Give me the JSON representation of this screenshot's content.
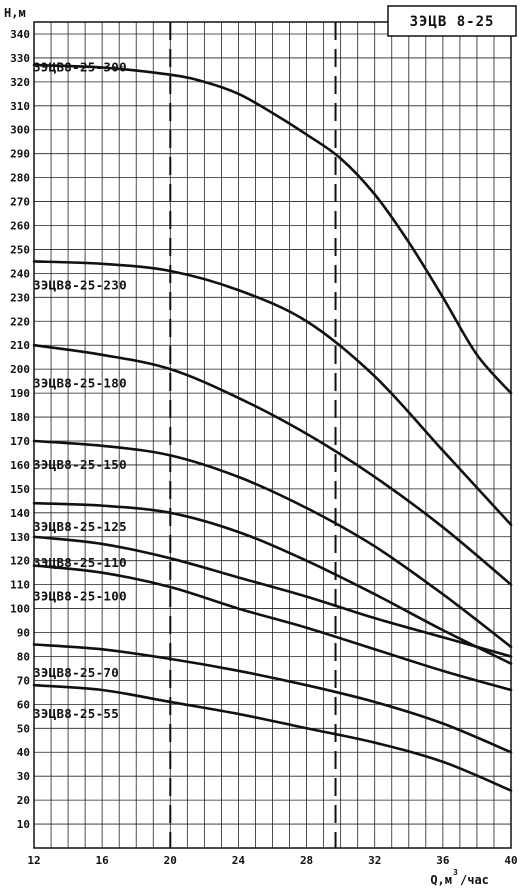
{
  "chart_data": {
    "type": "line",
    "title": "ЗЭЦВ 8-25",
    "ylabel": "Н,м",
    "xlabel": "Q,м",
    "xlabel_sup": "3",
    "xlabel_suffix": "/час",
    "xlim": [
      12,
      40
    ],
    "ylim": [
      0,
      345
    ],
    "x_ticks": [
      12,
      16,
      20,
      24,
      28,
      32,
      36,
      40
    ],
    "y_ticks": [
      10,
      20,
      30,
      40,
      50,
      60,
      70,
      80,
      90,
      100,
      110,
      120,
      130,
      140,
      150,
      160,
      170,
      180,
      190,
      200,
      210,
      220,
      230,
      240,
      250,
      260,
      270,
      280,
      290,
      300,
      310,
      320,
      330,
      340
    ],
    "grid": true,
    "dashed_x": [
      20,
      29.7
    ],
    "series": [
      {
        "name": "ЗЭЦВ8-25-300",
        "label_y": 326,
        "x": [
          12,
          16,
          20,
          22,
          24,
          26,
          28,
          30,
          32,
          34,
          36,
          38,
          40
        ],
        "y": [
          327,
          326,
          323,
          320,
          315,
          307,
          298,
          288,
          273,
          253,
          230,
          206,
          190
        ]
      },
      {
        "name": "ЗЭЦВ8-25-230",
        "label_y": 235,
        "x": [
          12,
          16,
          20,
          24,
          28,
          32,
          36,
          40
        ],
        "y": [
          245,
          244,
          241,
          233,
          220,
          197,
          166,
          135
        ]
      },
      {
        "name": "ЗЭЦВ8-25-180",
        "label_y": 194,
        "x": [
          12,
          16,
          20,
          24,
          28,
          32,
          36,
          40
        ],
        "y": [
          210,
          206,
          200,
          188,
          173,
          155,
          134,
          110
        ]
      },
      {
        "name": "ЗЭЦВ8-25-150",
        "label_y": 160,
        "x": [
          12,
          16,
          20,
          24,
          28,
          32,
          36,
          40
        ],
        "y": [
          170,
          168,
          164,
          155,
          142,
          126,
          106,
          84
        ]
      },
      {
        "name": "ЗЭЦВ8-25-125",
        "label_y": 134,
        "x": [
          12,
          16,
          20,
          24,
          28,
          32,
          36,
          40
        ],
        "y": [
          144,
          143,
          140,
          132,
          120,
          106,
          91,
          77
        ]
      },
      {
        "name": "ЗЭЦВ8-25-110",
        "label_y": 119,
        "x": [
          12,
          16,
          20,
          24,
          28,
          32,
          36,
          40
        ],
        "y": [
          130,
          127,
          121,
          113,
          105,
          96,
          88,
          80
        ]
      },
      {
        "name": "ЗЭЦВ8-25-100",
        "label_y": 105,
        "x": [
          12,
          16,
          20,
          24,
          28,
          32,
          36,
          40
        ],
        "y": [
          118,
          115,
          109,
          100,
          92,
          83,
          74,
          66
        ]
      },
      {
        "name": "ЗЭЦВ8-25-70",
        "label_y": 73,
        "x": [
          12,
          16,
          20,
          24,
          28,
          32,
          36,
          40
        ],
        "y": [
          85,
          83,
          79,
          74,
          68,
          61,
          52,
          40
        ]
      },
      {
        "name": "ЗЭЦВ8-25-55",
        "label_y": 56,
        "x": [
          12,
          16,
          20,
          24,
          28,
          32,
          36,
          40
        ],
        "y": [
          68,
          66,
          61,
          56,
          50,
          44,
          36,
          24
        ]
      }
    ]
  }
}
